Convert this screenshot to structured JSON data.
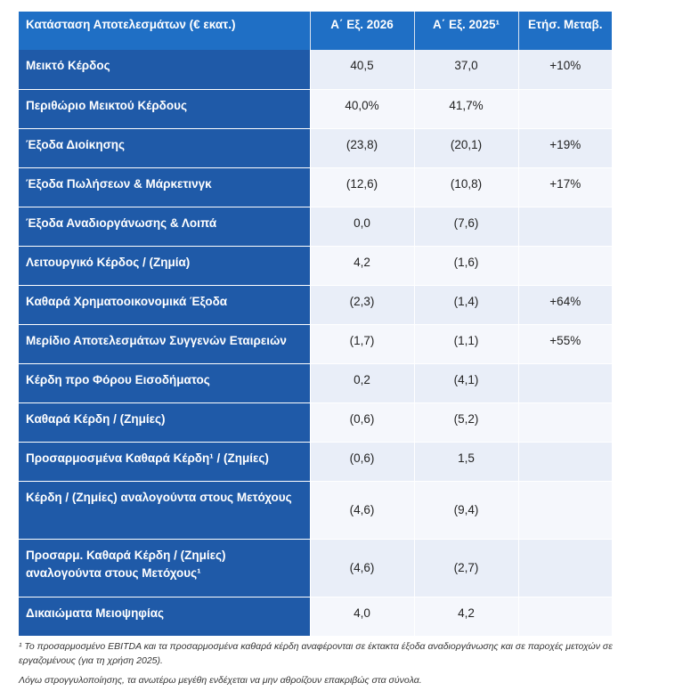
{
  "table": {
    "headers": [
      "Κατάσταση Αποτελεσμάτων (€ εκατ.)",
      "Α΄ Εξ. 2026",
      "Α΄ Εξ. 2025¹",
      "Ετήσ. Μεταβ."
    ],
    "rows": [
      {
        "label": "Μεικτό Κέρδος",
        "h1": "40,5",
        "h2": "37,0",
        "chg": "+10%"
      },
      {
        "label": "Περιθώριο Μεικτού Κέρδους",
        "h1": "40,0%",
        "h2": "41,7%",
        "chg": ""
      },
      {
        "label": "Έξοδα Διοίκησης",
        "h1": "(23,8)",
        "h2": "(20,1)",
        "chg": "+19%"
      },
      {
        "label": "Έξοδα Πωλήσεων & Μάρκετινγκ",
        "h1": "(12,6)",
        "h2": "(10,8)",
        "chg": "+17%"
      },
      {
        "label": "Έξοδα Αναδιοργάνωσης & Λοιπά",
        "h1": "0,0",
        "h2": "(7,6)",
        "chg": ""
      },
      {
        "label": "Λειτουργικό Κέρδος / (Ζημία)",
        "h1": "4,2",
        "h2": "(1,6)",
        "chg": ""
      },
      {
        "label": "Καθαρά Χρηματοοικονομικά Έξοδα",
        "h1": "(2,3)",
        "h2": "(1,4)",
        "chg": "+64%"
      },
      {
        "label": "Μερίδιο Αποτελεσμάτων Συγγενών Εταιρειών",
        "h1": "(1,7)",
        "h2": "(1,1)",
        "chg": "+55%"
      },
      {
        "label": "Κέρδη προ Φόρου Εισοδήματος",
        "h1": "0,2",
        "h2": "(4,1)",
        "chg": ""
      },
      {
        "label": "Καθαρά Κέρδη / (Ζημίες)",
        "h1": "(0,6)",
        "h2": "(5,2)",
        "chg": ""
      },
      {
        "label": "Προσαρμοσμένα Καθαρά Κέρδη¹ / (Ζημίες)",
        "h1": "(0,6)",
        "h2": "1,5",
        "chg": ""
      },
      {
        "label": "Κέρδη / (Ζημίες) αναλογούντα στους Μετόχους",
        "h1": "(4,6)",
        "h2": "(9,4)",
        "chg": ""
      },
      {
        "label": "Προσαρμ. Καθαρά Κέρδη / (Ζημίες) αναλογούντα στους Μετόχους¹",
        "h1": "(4,6)",
        "h2": "(2,7)",
        "chg": ""
      },
      {
        "label": "Δικαιώματα Μειοψηφίας",
        "h1": "4,0",
        "h2": "4,2",
        "chg": ""
      }
    ]
  },
  "footnotes": {
    "note1": "¹ Το προσαρμοσμένο EBITDA και τα προσαρμοσμένα καθαρά κέρδη αναφέρονται σε έκτακτα έξοδα αναδιοργάνωσης και σε παροχές μετοχών σε εργαζομένους (για τη χρήση 2025).",
    "note2": "Λόγω στρογγυλοποίησης, τα ανωτέρω μεγέθη ενδέχεται να μην αθροίζουν επακριβώς στα σύνολα."
  }
}
